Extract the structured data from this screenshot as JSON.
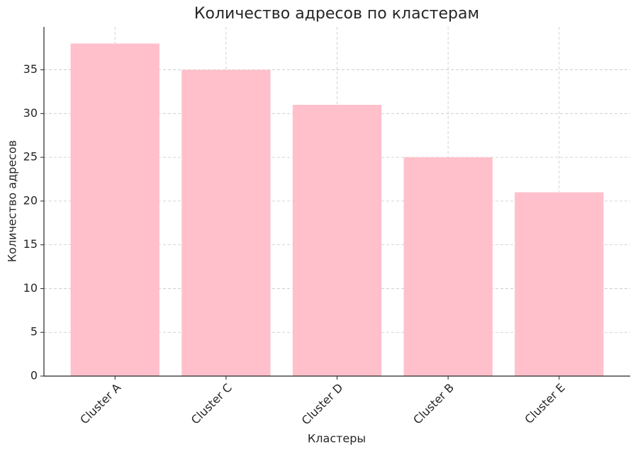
{
  "chart_data": {
    "type": "bar",
    "title": "Количество адресов по кластерам",
    "x_label": "Кластеры",
    "y_label": "Количество адресов",
    "categories": [
      "Cluster A",
      "Cluster C",
      "Cluster D",
      "Cluster B",
      "Cluster E"
    ],
    "values": [
      38,
      35,
      31,
      25,
      21
    ],
    "color": "#ffc0cb",
    "ylim": [
      0,
      39.9
    ],
    "yticks": [
      0,
      5,
      10,
      15,
      20,
      25,
      30,
      35
    ],
    "grid": true
  }
}
